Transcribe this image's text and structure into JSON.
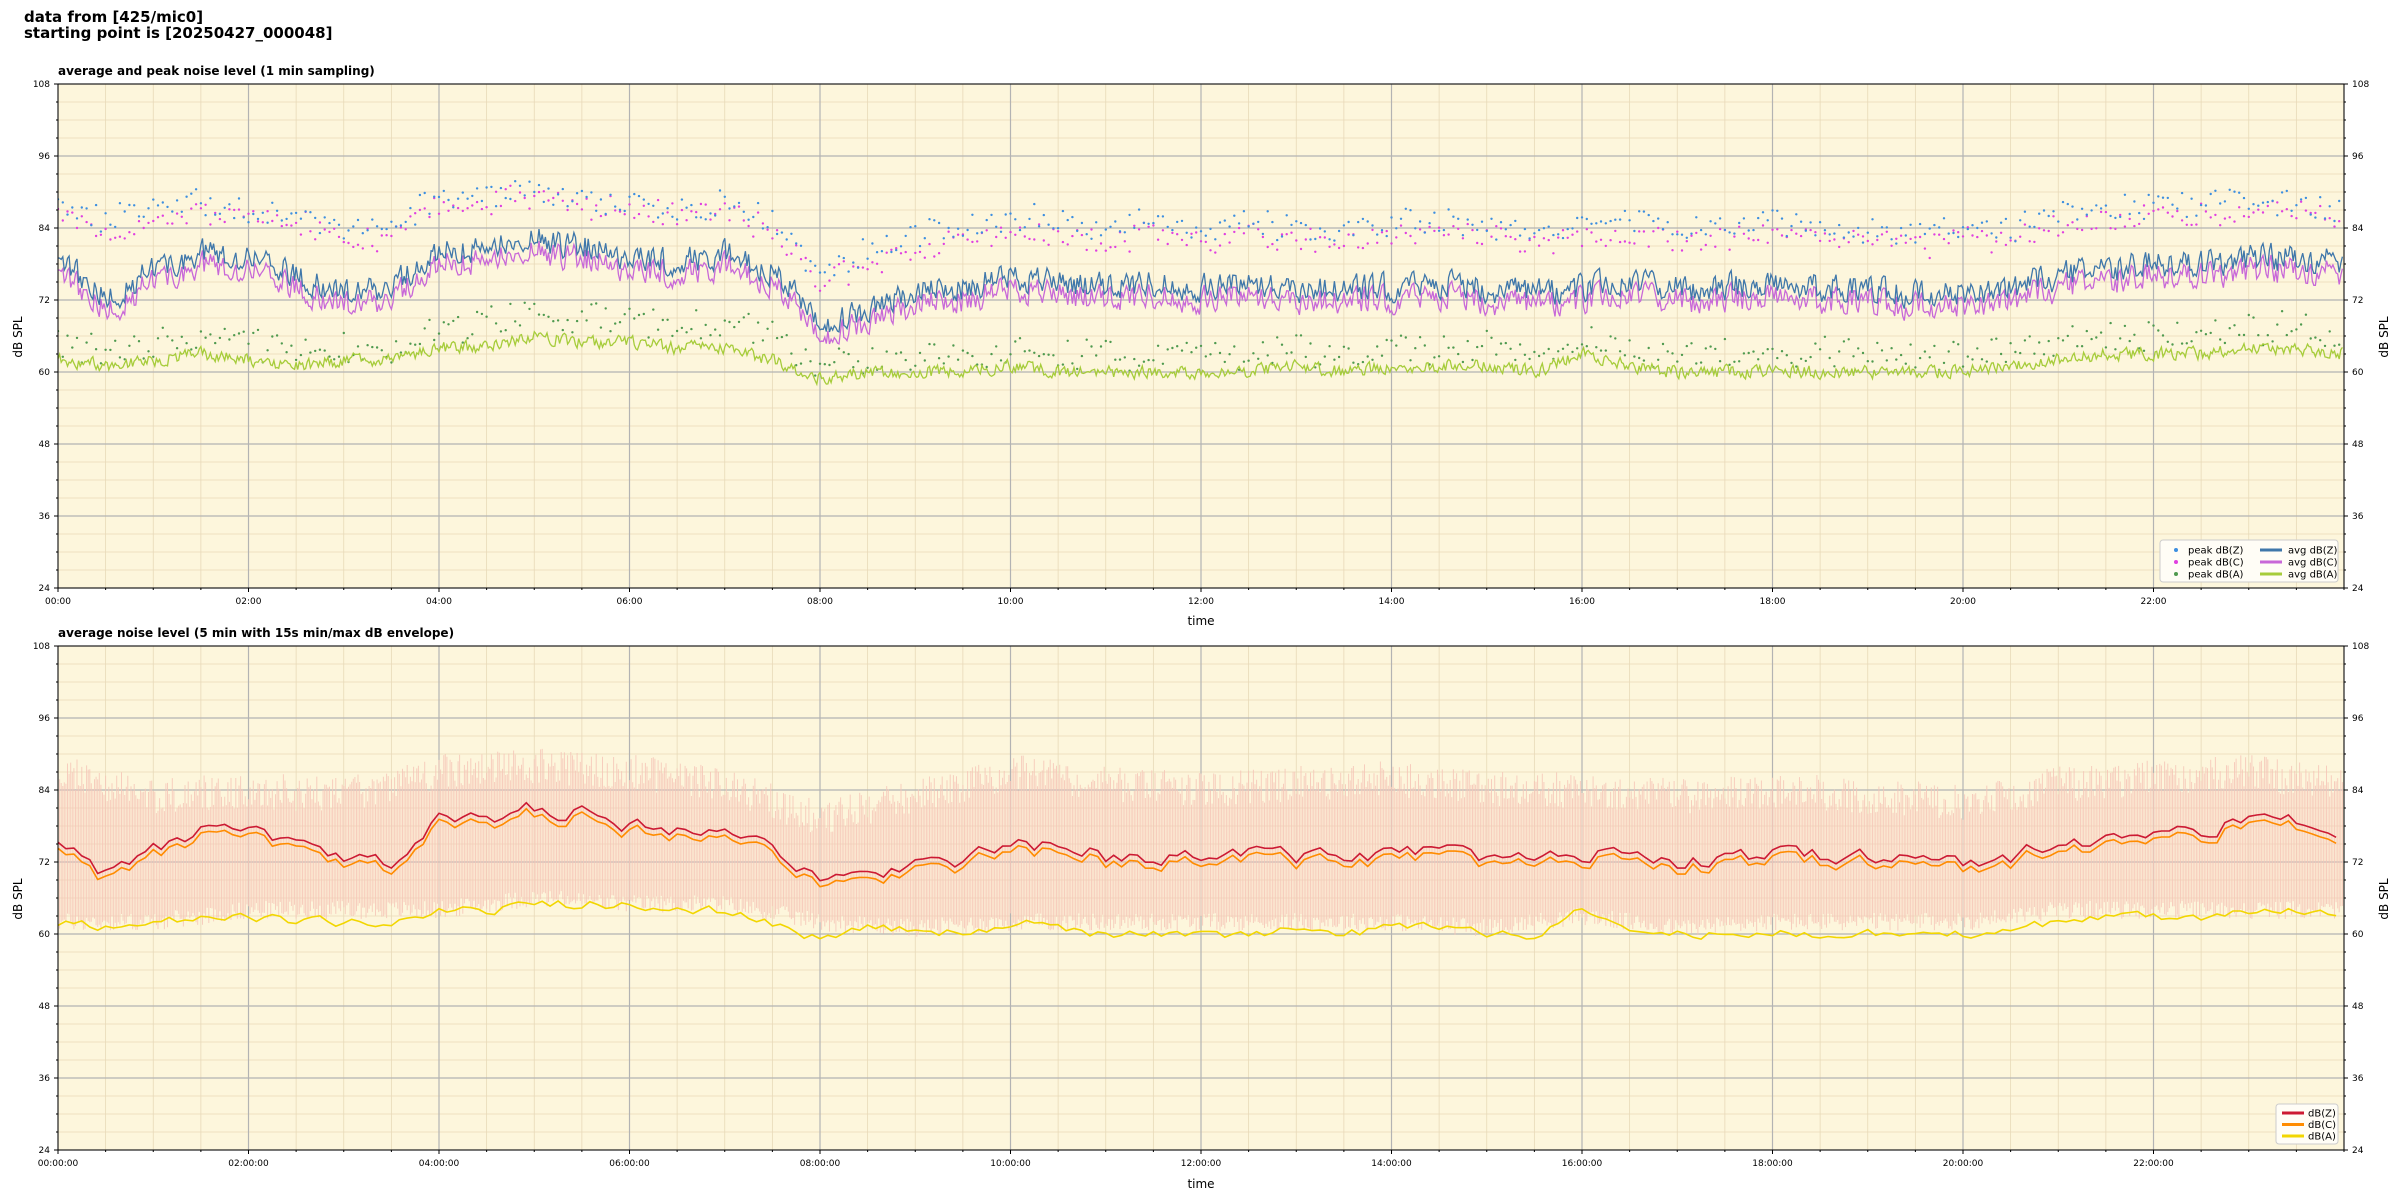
{
  "header": {
    "line1": "data from [425/mic0]",
    "line2": "starting point is [20250427_000048]"
  },
  "colors": {
    "plot_bg": "#fdf6dc",
    "peak_z": "#3d8fe0",
    "peak_c": "#e040e0",
    "peak_a": "#4f9a4f",
    "avg_z": "#3f77aa",
    "avg_c": "#c868d8",
    "avg_a": "#a6cc3a",
    "env": "#f6c6b8",
    "dbz": "#cc1a33",
    "dbc": "#ff8c00",
    "dba": "#f2d600"
  },
  "chart_data": [
    {
      "type": "line",
      "title": "average and peak noise level (1 min sampling)",
      "xlabel": "time",
      "ylabel": "dB SPL",
      "ylabel_right": "dB SPL",
      "xlim": [
        0,
        24
      ],
      "ylim": [
        24,
        108
      ],
      "yticks": [
        24,
        36,
        48,
        60,
        72,
        84,
        96,
        108
      ],
      "xtick_labels": [
        "00:00",
        "02:00",
        "04:00",
        "06:00",
        "08:00",
        "10:00",
        "12:00",
        "14:00",
        "16:00",
        "18:00",
        "20:00",
        "22:00"
      ],
      "grid": true,
      "legend_position": "lower-right",
      "legend": [
        "peak dB(Z)",
        "peak dB(C)",
        "peak dB(A)",
        "avg dB(Z)",
        "avg dB(C)",
        "avg dB(A)"
      ],
      "sampling_minutes": 1,
      "series": [
        {
          "name": "avg dB(Z)",
          "style": "line",
          "x": [
            0,
            0.5,
            1,
            1.5,
            2,
            2.5,
            3,
            3.5,
            4,
            4.5,
            5,
            5.5,
            6,
            6.5,
            7,
            7.5,
            8,
            8.5,
            9,
            9.5,
            10,
            10.5,
            11,
            11.5,
            12,
            12.5,
            13,
            13.5,
            14,
            14.5,
            15,
            15.5,
            16,
            16.5,
            17,
            17.5,
            18,
            18.5,
            19,
            19.5,
            20,
            20.5,
            21,
            21.5,
            22,
            22.5,
            23,
            23.5,
            24
          ],
          "values": [
            79,
            72,
            77,
            80,
            79,
            76,
            73,
            74,
            80,
            81,
            82,
            81,
            79,
            78,
            80,
            77,
            68,
            70,
            73,
            74,
            76,
            75,
            74,
            75,
            74,
            75,
            74,
            74,
            74,
            75,
            74,
            73,
            74,
            75,
            74,
            74,
            75,
            74,
            74,
            73,
            73,
            74,
            76,
            77,
            78,
            78,
            79,
            79,
            78
          ]
        },
        {
          "name": "avg dB(C)",
          "style": "line",
          "x": [
            0,
            0.5,
            1,
            1.5,
            2,
            2.5,
            3,
            3.5,
            4,
            4.5,
            5,
            5.5,
            6,
            6.5,
            7,
            7.5,
            8,
            8.5,
            9,
            9.5,
            10,
            10.5,
            11,
            11.5,
            12,
            12.5,
            13,
            13.5,
            14,
            14.5,
            15,
            15.5,
            16,
            16.5,
            17,
            17.5,
            18,
            18.5,
            19,
            19.5,
            20,
            20.5,
            21,
            21.5,
            22,
            22.5,
            23,
            23.5,
            24
          ],
          "values": [
            77,
            70,
            75,
            78,
            77,
            74,
            71,
            72,
            78,
            79,
            80,
            79,
            77,
            76,
            78,
            75,
            66,
            68,
            71,
            72,
            74,
            73,
            72,
            73,
            72,
            73,
            72,
            72,
            72,
            73,
            72,
            71,
            72,
            73,
            72,
            72,
            73,
            72,
            72,
            71,
            71,
            72,
            74,
            75,
            76,
            76,
            77,
            77,
            76
          ]
        },
        {
          "name": "avg dB(A)",
          "style": "line",
          "x": [
            0,
            0.5,
            1,
            1.5,
            2,
            2.5,
            3,
            3.5,
            4,
            4.5,
            5,
            5.5,
            6,
            6.5,
            7,
            7.5,
            8,
            8.5,
            9,
            9.5,
            10,
            10.5,
            11,
            11.5,
            12,
            12.5,
            13,
            13.5,
            14,
            14.5,
            15,
            15.5,
            16,
            16.5,
            17,
            17.5,
            18,
            18.5,
            19,
            19.5,
            20,
            20.5,
            21,
            21.5,
            22,
            22.5,
            23,
            23.5,
            24
          ],
          "values": [
            62,
            61,
            62,
            63,
            62,
            61,
            62,
            62,
            64,
            64,
            66,
            65,
            65,
            64,
            64,
            62,
            59,
            60,
            60,
            60,
            61,
            60,
            60,
            60,
            60,
            60,
            61,
            60,
            61,
            61,
            61,
            60,
            63,
            61,
            60,
            60,
            60,
            60,
            60,
            60,
            60,
            61,
            62,
            63,
            63,
            63,
            64,
            64,
            63
          ]
        },
        {
          "name": "peak dB(Z)",
          "style": "scatter",
          "x": [
            0,
            0.5,
            1,
            1.5,
            2,
            2.5,
            3,
            3.5,
            4,
            4.5,
            5,
            5.5,
            6,
            6.5,
            7,
            7.5,
            8,
            8.5,
            9,
            9.5,
            10,
            10.5,
            11,
            11.5,
            12,
            12.5,
            13,
            13.5,
            14,
            14.5,
            15,
            15.5,
            16,
            16.5,
            17,
            17.5,
            18,
            18.5,
            19,
            19.5,
            20,
            20.5,
            21,
            21.5,
            22,
            22.5,
            23,
            23.5,
            24
          ],
          "values": [
            88,
            85,
            88,
            88,
            87,
            86,
            84,
            84,
            89,
            89,
            90,
            89,
            88,
            87,
            88,
            85,
            77,
            80,
            83,
            84,
            86,
            85,
            84,
            85,
            84,
            85,
            84,
            84,
            85,
            85,
            84,
            83,
            84,
            85,
            84,
            84,
            85,
            84,
            84,
            83,
            84,
            84,
            86,
            87,
            88,
            88,
            89,
            88,
            87
          ]
        },
        {
          "name": "peak dB(C)",
          "style": "scatter",
          "x": [
            0,
            0.5,
            1,
            1.5,
            2,
            2.5,
            3,
            3.5,
            4,
            4.5,
            5,
            5.5,
            6,
            6.5,
            7,
            7.5,
            8,
            8.5,
            9,
            9.5,
            10,
            10.5,
            11,
            11.5,
            12,
            12.5,
            13,
            13.5,
            14,
            14.5,
            15,
            15.5,
            16,
            16.5,
            17,
            17.5,
            18,
            18.5,
            19,
            19.5,
            20,
            20.5,
            21,
            21.5,
            22,
            22.5,
            23,
            23.5,
            24
          ],
          "values": [
            86,
            83,
            86,
            87,
            86,
            85,
            82,
            82,
            88,
            88,
            89,
            88,
            87,
            86,
            87,
            84,
            75,
            78,
            81,
            82,
            84,
            83,
            82,
            83,
            82,
            83,
            82,
            82,
            83,
            83,
            82,
            81,
            82,
            83,
            82,
            82,
            83,
            82,
            82,
            81,
            82,
            82,
            84,
            85,
            86,
            86,
            87,
            87,
            86
          ]
        },
        {
          "name": "peak dB(A)",
          "style": "scatter",
          "x": [
            0,
            0.5,
            1,
            1.5,
            2,
            2.5,
            3,
            3.5,
            4,
            4.5,
            5,
            5.5,
            6,
            6.5,
            7,
            7.5,
            8,
            8.5,
            9,
            9.5,
            10,
            10.5,
            11,
            11.5,
            12,
            12.5,
            13,
            13.5,
            14,
            14.5,
            15,
            15.5,
            16,
            16.5,
            17,
            17.5,
            18,
            18.5,
            19,
            19.5,
            20,
            20.5,
            21,
            21.5,
            22,
            22.5,
            23,
            23.5,
            24
          ],
          "values": [
            65,
            63,
            65,
            66,
            65,
            64,
            64,
            64,
            67,
            68,
            70,
            69,
            68,
            68,
            68,
            66,
            61,
            62,
            62,
            63,
            64,
            63,
            63,
            63,
            63,
            63,
            64,
            63,
            64,
            64,
            64,
            63,
            66,
            64,
            63,
            63,
            63,
            63,
            63,
            63,
            63,
            64,
            65,
            66,
            66,
            66,
            67,
            67,
            66
          ]
        }
      ]
    },
    {
      "type": "line",
      "title": "average noise level (5 min with 15s min/max dB envelope)",
      "xlabel": "time",
      "ylabel": "dB SPL",
      "ylabel_right": "dB SPL",
      "xlim": [
        0,
        24
      ],
      "ylim": [
        24,
        108
      ],
      "yticks": [
        24,
        36,
        48,
        60,
        72,
        84,
        96,
        108
      ],
      "xtick_labels": [
        "00:00:00",
        "02:00:00",
        "04:00:00",
        "06:00:00",
        "08:00:00",
        "10:00:00",
        "12:00:00",
        "14:00:00",
        "16:00:00",
        "18:00:00",
        "20:00:00",
        "22:00:00"
      ],
      "grid": true,
      "legend_position": "lower-right",
      "legend": [
        "dB(Z)",
        "dB(C)",
        "dB(A)"
      ],
      "sampling_minutes": 5,
      "series": [
        {
          "name": "dB(Z)",
          "style": "line",
          "x": [
            0,
            0.5,
            1,
            1.5,
            2,
            2.5,
            3,
            3.5,
            4,
            4.5,
            5,
            5.5,
            6,
            6.5,
            7,
            7.5,
            8,
            8.5,
            9,
            9.5,
            10,
            10.5,
            11,
            11.5,
            12,
            12.5,
            13,
            13.5,
            14,
            14.5,
            15,
            15.5,
            16,
            16.5,
            17,
            17.5,
            18,
            18.5,
            19,
            19.5,
            20,
            20.5,
            21,
            21.5,
            22,
            22.5,
            23,
            23.5,
            24
          ],
          "values": [
            76,
            70,
            74,
            77,
            77,
            75,
            72,
            72,
            79,
            79,
            81,
            80,
            78,
            77,
            79,
            75,
            68,
            70,
            72,
            72,
            75,
            74,
            73,
            73,
            73,
            74,
            73,
            73,
            73,
            74,
            73,
            72,
            73,
            74,
            72,
            72,
            74,
            73,
            73,
            72,
            72,
            73,
            75,
            76,
            77,
            77,
            79,
            79,
            77
          ]
        },
        {
          "name": "dB(C)",
          "style": "line",
          "x": [
            0,
            0.5,
            1,
            1.5,
            2,
            2.5,
            3,
            3.5,
            4,
            4.5,
            5,
            5.5,
            6,
            6.5,
            7,
            7.5,
            8,
            8.5,
            9,
            9.5,
            10,
            10.5,
            11,
            11.5,
            12,
            12.5,
            13,
            13.5,
            14,
            14.5,
            15,
            15.5,
            16,
            16.5,
            17,
            17.5,
            18,
            18.5,
            19,
            19.5,
            20,
            20.5,
            21,
            21.5,
            22,
            22.5,
            23,
            23.5,
            24
          ],
          "values": [
            75,
            69,
            73,
            76,
            76,
            74,
            71,
            71,
            78,
            78,
            80,
            79,
            77,
            76,
            78,
            74,
            67,
            69,
            71,
            71,
            74,
            73,
            72,
            72,
            72,
            73,
            72,
            72,
            72,
            73,
            72,
            71,
            72,
            73,
            71,
            71,
            73,
            72,
            72,
            71,
            71,
            72,
            74,
            75,
            76,
            76,
            78,
            78,
            76
          ]
        },
        {
          "name": "dB(A)",
          "style": "line",
          "x": [
            0,
            0.5,
            1,
            1.5,
            2,
            2.5,
            3,
            3.5,
            4,
            4.5,
            5,
            5.5,
            6,
            6.5,
            7,
            7.5,
            8,
            8.5,
            9,
            9.5,
            10,
            10.5,
            11,
            11.5,
            12,
            12.5,
            13,
            13.5,
            14,
            14.5,
            15,
            15.5,
            16,
            16.5,
            17,
            17.5,
            18,
            18.5,
            19,
            19.5,
            20,
            20.5,
            21,
            21.5,
            22,
            22.5,
            23,
            23.5,
            24
          ],
          "values": [
            62,
            61,
            62,
            63,
            63,
            62,
            62,
            62,
            64,
            64,
            65,
            65,
            65,
            64,
            64,
            62,
            59,
            61,
            61,
            60,
            62,
            61,
            60,
            60,
            60,
            60,
            61,
            60,
            61,
            61,
            60,
            60,
            64,
            61,
            60,
            60,
            60,
            60,
            60,
            60,
            60,
            61,
            62,
            63,
            63,
            63,
            64,
            64,
            63
          ]
        },
        {
          "name": "envelope",
          "style": "band",
          "x": [
            0,
            1,
            2,
            3,
            4,
            5,
            6,
            7,
            8,
            9,
            10,
            11,
            12,
            13,
            14,
            15,
            16,
            17,
            18,
            19,
            20,
            21,
            22,
            23,
            24
          ],
          "lower": [
            62,
            62,
            64,
            64,
            64,
            66,
            65,
            65,
            62,
            61,
            62,
            62,
            62,
            62,
            62,
            61,
            63,
            61,
            62,
            62,
            62,
            64,
            64,
            64,
            64
          ],
          "upper": [
            90,
            86,
            87,
            86,
            90,
            91,
            90,
            88,
            82,
            86,
            90,
            88,
            87,
            88,
            89,
            87,
            87,
            86,
            87,
            86,
            85,
            88,
            89,
            90,
            88
          ]
        }
      ]
    }
  ]
}
